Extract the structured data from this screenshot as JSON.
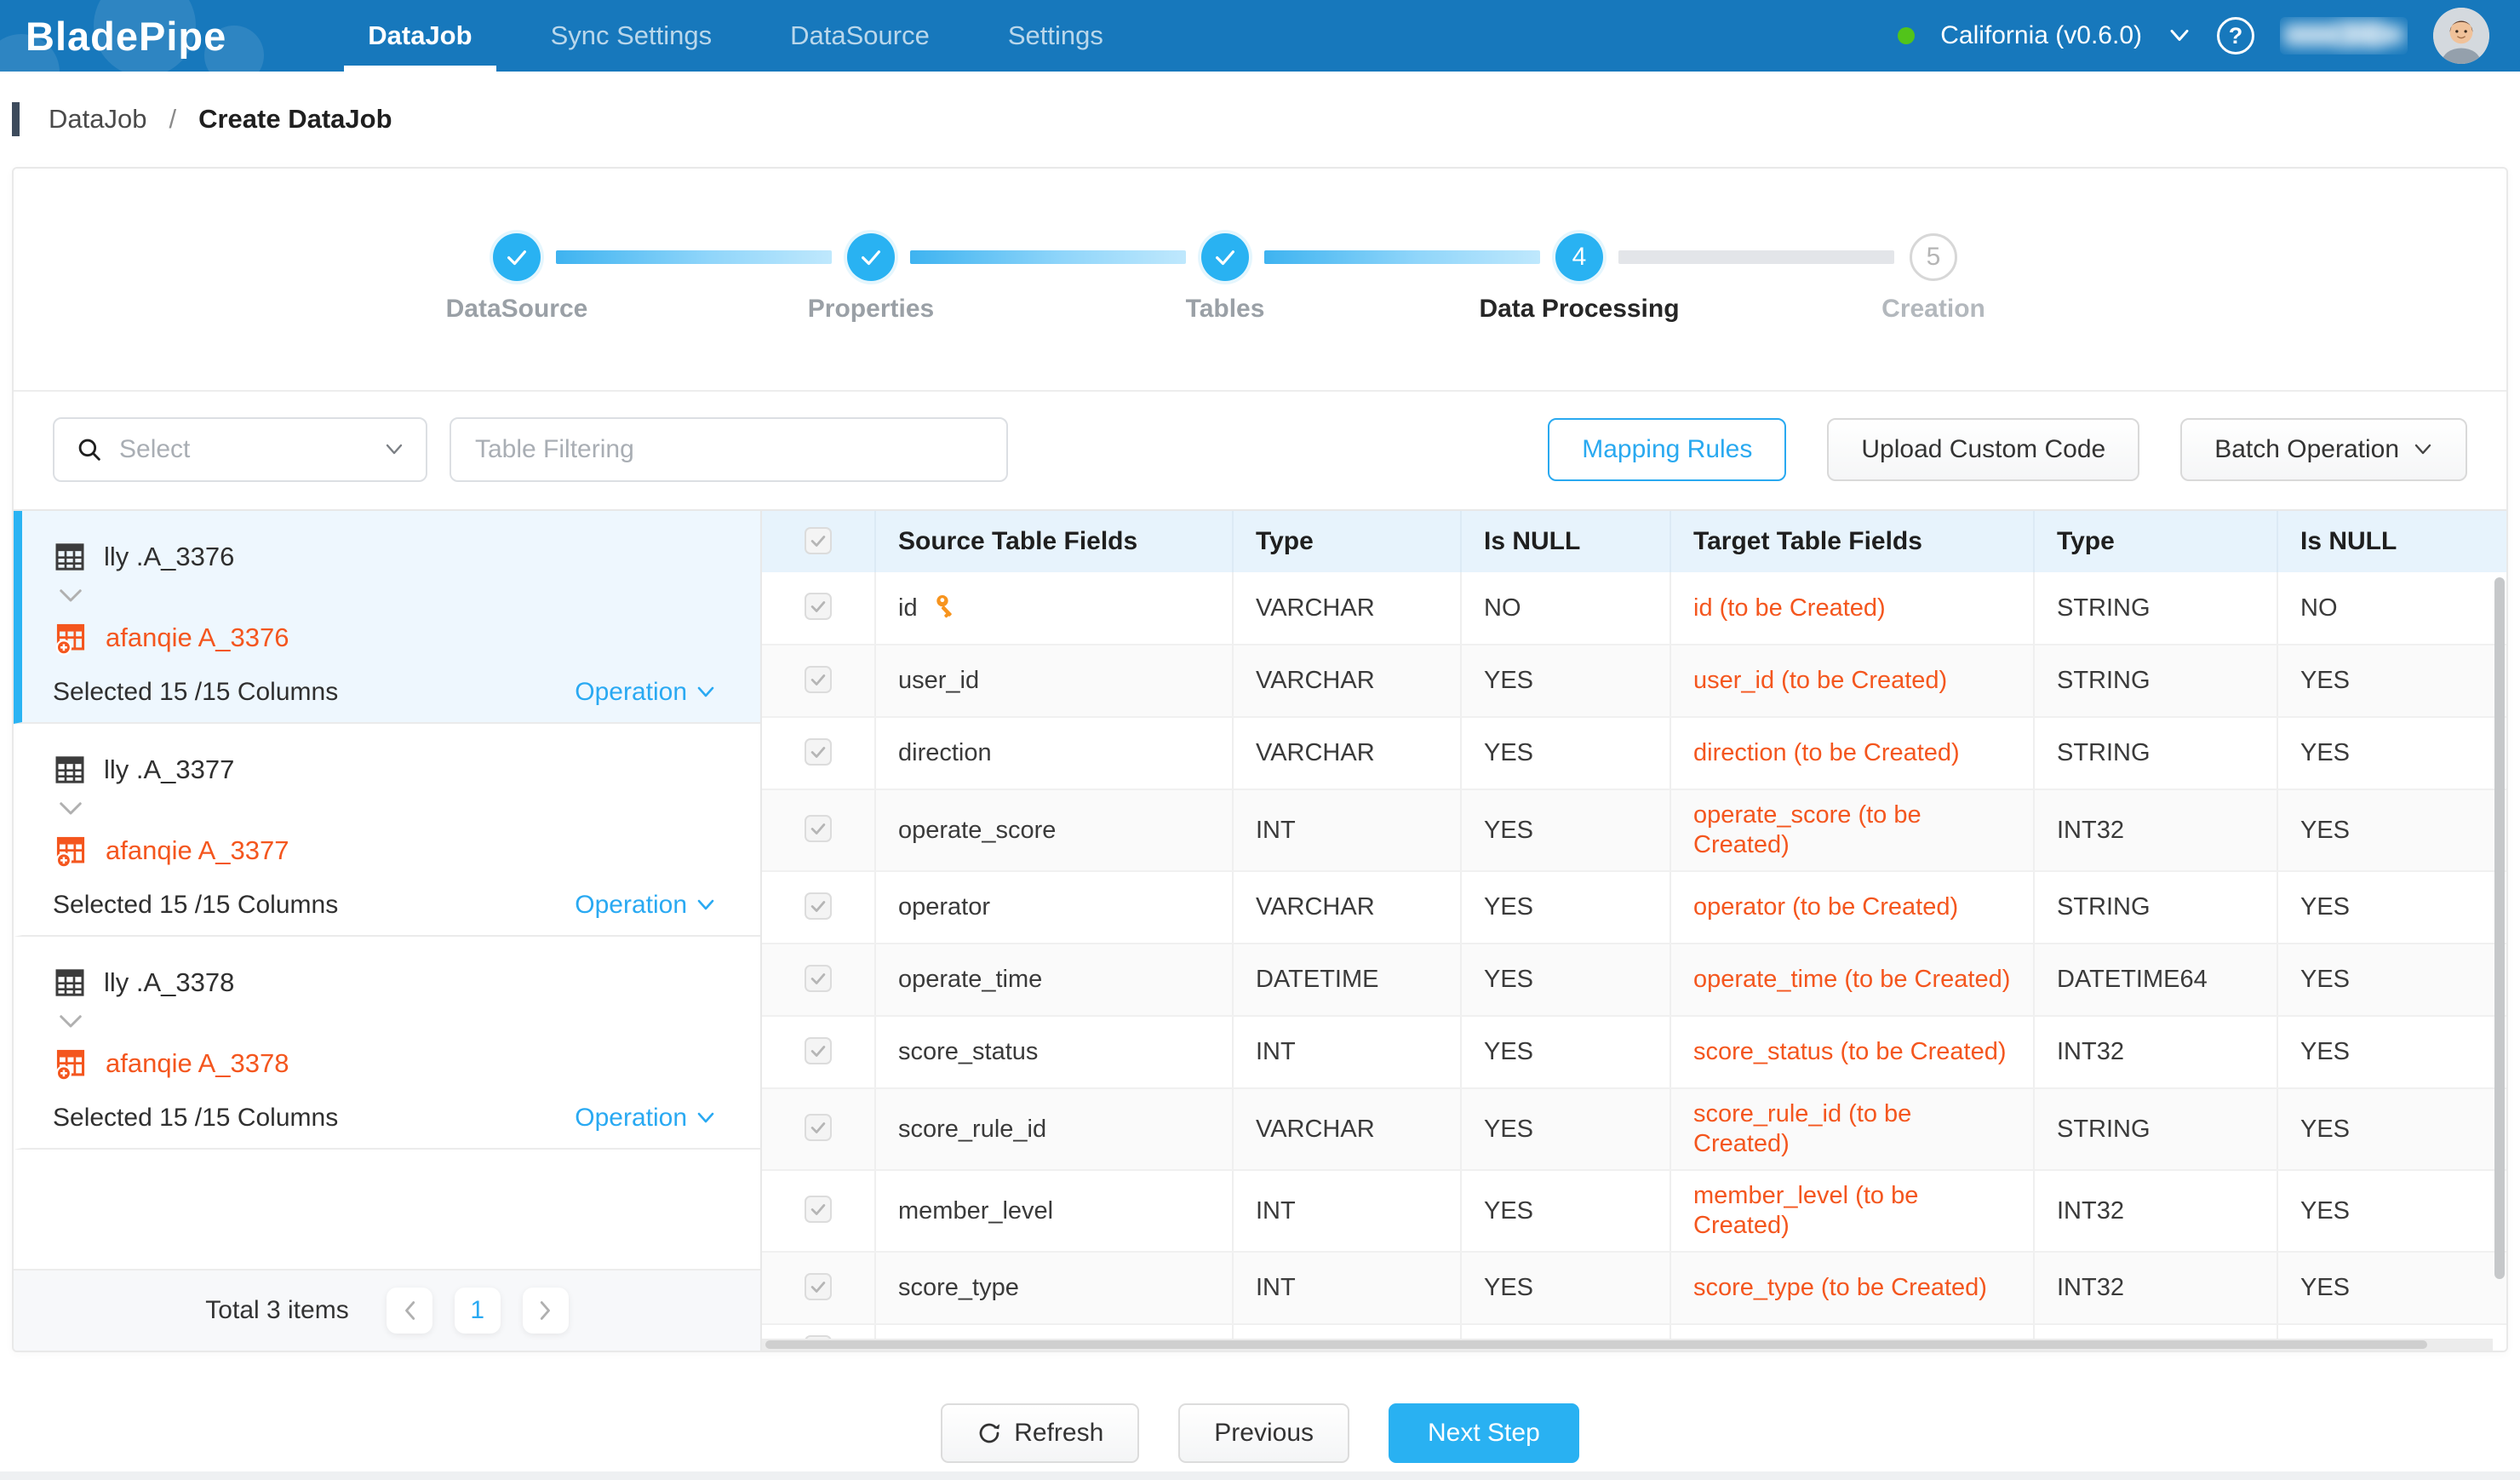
{
  "colors": {
    "nav_blue": "#1778bc",
    "accent_blue": "#29b1f2",
    "orange": "#f4561e",
    "status_green": "#52c41a",
    "table_header_bg": "#e7f3fc",
    "selected_item_bg": "#eef7fe"
  },
  "nav": {
    "logo": "BladePipe",
    "tabs": [
      {
        "label": "DataJob",
        "active": true
      },
      {
        "label": "Sync Settings",
        "active": false
      },
      {
        "label": "DataSource",
        "active": false
      },
      {
        "label": "Settings",
        "active": false
      }
    ],
    "region": "California (v0.6.0)",
    "help": "?"
  },
  "breadcrumb": {
    "parent": "DataJob",
    "separator": "/",
    "current": "Create DataJob"
  },
  "stepper": {
    "steps": [
      {
        "label": "DataSource",
        "state": "done",
        "number": "1"
      },
      {
        "label": "Properties",
        "state": "done",
        "number": "2"
      },
      {
        "label": "Tables",
        "state": "done",
        "number": "3"
      },
      {
        "label": "Data Processing",
        "state": "active",
        "number": "4"
      },
      {
        "label": "Creation",
        "state": "pending",
        "number": "5"
      }
    ]
  },
  "toolbar": {
    "select_placeholder": "Select",
    "filter_placeholder": "Table Filtering",
    "mapping_rules": "Mapping Rules",
    "upload_custom_code": "Upload Custom Code",
    "batch_operation": "Batch Operation"
  },
  "left_panel": {
    "items": [
      {
        "source_table": "lly .A_3376",
        "target_table": "afanqie A_3376",
        "selection_summary": "Selected 15 /15 Columns",
        "operation_label": "Operation",
        "selected": true
      },
      {
        "source_table": "lly .A_3377",
        "target_table": "afanqie A_3377",
        "selection_summary": "Selected 15 /15 Columns",
        "operation_label": "Operation",
        "selected": false
      },
      {
        "source_table": "lly .A_3378",
        "target_table": "afanqie A_3378",
        "selection_summary": "Selected 15 /15 Columns",
        "operation_label": "Operation",
        "selected": false
      }
    ],
    "pagination": {
      "total_label": "Total 3 items",
      "current_page": "1"
    }
  },
  "field_table": {
    "headers": [
      "Source Table Fields",
      "Type",
      "Is NULL",
      "Target Table Fields",
      "Type",
      "Is NULL"
    ],
    "rows": [
      {
        "source": "id",
        "primary_key": true,
        "type": "VARCHAR",
        "is_null": "NO",
        "target": "id (to be Created)",
        "target_type": "STRING",
        "target_is_null": "NO"
      },
      {
        "source": "user_id",
        "primary_key": false,
        "type": "VARCHAR",
        "is_null": "YES",
        "target": "user_id (to be Created)",
        "target_type": "STRING",
        "target_is_null": "YES"
      },
      {
        "source": "direction",
        "primary_key": false,
        "type": "VARCHAR",
        "is_null": "YES",
        "target": "direction (to be Created)",
        "target_type": "STRING",
        "target_is_null": "YES"
      },
      {
        "source": "operate_score",
        "primary_key": false,
        "type": "INT",
        "is_null": "YES",
        "target": "operate_score (to be Created)",
        "target_type": "INT32",
        "target_is_null": "YES"
      },
      {
        "source": "operator",
        "primary_key": false,
        "type": "VARCHAR",
        "is_null": "YES",
        "target": "operator (to be Created)",
        "target_type": "STRING",
        "target_is_null": "YES"
      },
      {
        "source": "operate_time",
        "primary_key": false,
        "type": "DATETIME",
        "is_null": "YES",
        "target": "operate_time (to be Created)",
        "target_type": "DATETIME64",
        "target_is_null": "YES"
      },
      {
        "source": "score_status",
        "primary_key": false,
        "type": "INT",
        "is_null": "YES",
        "target": "score_status (to be Created)",
        "target_type": "INT32",
        "target_is_null": "YES"
      },
      {
        "source": "score_rule_id",
        "primary_key": false,
        "type": "VARCHAR",
        "is_null": "YES",
        "target": "score_rule_id (to be Created)",
        "target_type": "STRING",
        "target_is_null": "YES"
      },
      {
        "source": "member_level",
        "primary_key": false,
        "type": "INT",
        "is_null": "YES",
        "target": "member_level (to be Created)",
        "target_type": "INT32",
        "target_is_null": "YES"
      },
      {
        "source": "score_type",
        "primary_key": false,
        "type": "INT",
        "is_null": "YES",
        "target": "score_type (to be Created)",
        "target_type": "INT32",
        "target_is_null": "YES"
      }
    ]
  },
  "footer_actions": {
    "refresh": "Refresh",
    "previous": "Previous",
    "next_step": "Next Step"
  }
}
